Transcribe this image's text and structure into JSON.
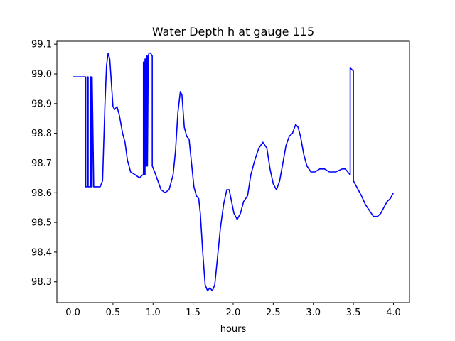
{
  "chart_data": {
    "type": "line",
    "title": "Water Depth h at gauge 115",
    "xlabel": "hours",
    "ylabel": "",
    "xlim": [
      -0.2,
      4.2
    ],
    "ylim": [
      98.23,
      99.11
    ],
    "xticks": [
      "0.0",
      "0.5",
      "1.0",
      "1.5",
      "2.0",
      "2.5",
      "3.0",
      "3.5",
      "4.0"
    ],
    "yticks": [
      "98.3",
      "98.4",
      "98.5",
      "98.6",
      "98.7",
      "98.8",
      "98.9",
      "99.0",
      "99.1"
    ],
    "grid": false,
    "legend": "none",
    "series": [
      {
        "color": "#0000ff",
        "x": [
          0.0,
          0.16,
          0.16,
          0.18,
          0.18,
          0.19,
          0.19,
          0.22,
          0.22,
          0.23,
          0.23,
          0.24,
          0.24,
          0.26,
          0.3,
          0.34,
          0.37,
          0.4,
          0.42,
          0.44,
          0.46,
          0.48,
          0.5,
          0.52,
          0.55,
          0.58,
          0.62,
          0.65,
          0.68,
          0.72,
          0.78,
          0.83,
          0.87,
          0.88,
          0.88,
          0.89,
          0.89,
          0.9,
          0.9,
          0.91,
          0.91,
          0.92,
          0.92,
          0.93,
          0.93,
          0.94,
          0.95,
          0.97,
          0.99,
          0.99,
          1.02,
          1.06,
          1.1,
          1.15,
          1.2,
          1.25,
          1.28,
          1.31,
          1.34,
          1.36,
          1.39,
          1.42,
          1.45,
          1.48,
          1.51,
          1.54,
          1.57,
          1.59,
          1.62,
          1.65,
          1.68,
          1.71,
          1.74,
          1.77,
          1.8,
          1.84,
          1.88,
          1.92,
          1.95,
          1.98,
          2.01,
          2.05,
          2.09,
          2.13,
          2.18,
          2.22,
          2.27,
          2.32,
          2.37,
          2.42,
          2.46,
          2.5,
          2.54,
          2.58,
          2.62,
          2.66,
          2.7,
          2.74,
          2.78,
          2.81,
          2.84,
          2.88,
          2.92,
          2.97,
          3.02,
          3.08,
          3.14,
          3.2,
          3.28,
          3.36,
          3.4,
          3.43,
          3.46,
          3.46,
          3.5,
          3.5,
          3.54,
          3.6,
          3.65,
          3.7,
          3.75,
          3.8,
          3.84,
          3.88,
          3.92,
          3.96,
          4.0
        ],
        "y": [
          98.99,
          98.99,
          98.62,
          98.62,
          98.99,
          98.99,
          98.62,
          98.62,
          98.99,
          98.99,
          98.62,
          98.62,
          98.99,
          98.62,
          98.62,
          98.62,
          98.64,
          98.9,
          99.03,
          99.07,
          99.05,
          98.97,
          98.89,
          98.88,
          98.89,
          98.86,
          98.8,
          98.77,
          98.71,
          98.67,
          98.66,
          98.65,
          98.66,
          98.66,
          99.04,
          99.04,
          98.66,
          98.66,
          99.05,
          99.05,
          98.69,
          98.69,
          99.06,
          99.06,
          98.69,
          99.06,
          99.07,
          99.07,
          99.06,
          98.69,
          98.67,
          98.64,
          98.61,
          98.6,
          98.61,
          98.66,
          98.74,
          98.87,
          98.94,
          98.93,
          98.82,
          98.79,
          98.78,
          98.7,
          98.62,
          98.59,
          98.58,
          98.53,
          98.4,
          98.29,
          98.27,
          98.28,
          98.27,
          98.29,
          98.37,
          98.48,
          98.56,
          98.61,
          98.61,
          98.57,
          98.53,
          98.51,
          98.53,
          98.57,
          98.59,
          98.66,
          98.71,
          98.75,
          98.77,
          98.75,
          98.68,
          98.63,
          98.61,
          98.64,
          98.7,
          98.76,
          98.79,
          98.8,
          98.83,
          98.82,
          98.79,
          98.73,
          98.69,
          98.67,
          98.67,
          98.68,
          98.68,
          98.67,
          98.67,
          98.68,
          98.68,
          98.67,
          98.66,
          99.02,
          99.01,
          98.64,
          98.62,
          98.59,
          98.56,
          98.54,
          98.52,
          98.52,
          98.53,
          98.55,
          98.57,
          98.58,
          98.6
        ]
      }
    ]
  }
}
